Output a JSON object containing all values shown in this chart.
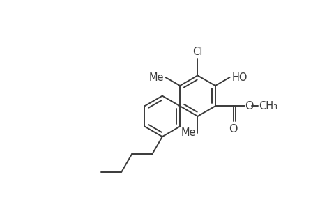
{
  "background": "#ffffff",
  "line_color": "#3a3a3a",
  "line_width": 1.4,
  "font_size": 10.5,
  "figsize": [
    4.6,
    3.0
  ],
  "dpi": 100,
  "xlim": [
    0,
    4.6
  ],
  "ylim": [
    0,
    3.0
  ]
}
